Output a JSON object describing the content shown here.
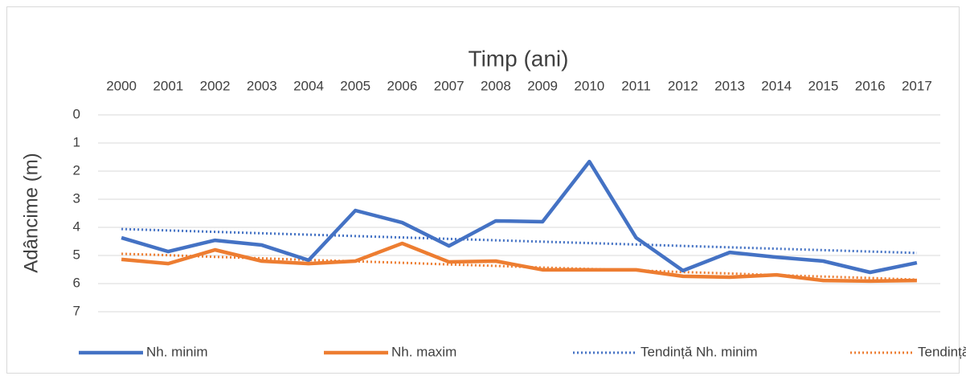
{
  "chart_data": {
    "type": "line",
    "title": "Timp (ani)",
    "y_label": "Adâncime (m)",
    "categories": [
      "2000",
      "2001",
      "2002",
      "2003",
      "2004",
      "2005",
      "2006",
      "2007",
      "2008",
      "2009",
      "2010",
      "2011",
      "2012",
      "2013",
      "2014",
      "2015",
      "2016",
      "2017"
    ],
    "series": [
      {
        "name": "Nh. minim",
        "color": "#4472c4",
        "style": "solid",
        "values": [
          4.37,
          4.86,
          4.46,
          4.63,
          5.17,
          3.4,
          3.83,
          4.66,
          3.77,
          3.8,
          1.66,
          4.37,
          5.54,
          4.89,
          5.06,
          5.2,
          5.6,
          5.26
        ]
      },
      {
        "name": "Nh. maxim",
        "color": "#ed7d31",
        "style": "solid",
        "values": [
          5.14,
          5.29,
          4.8,
          5.2,
          5.29,
          5.2,
          4.57,
          5.23,
          5.2,
          5.51,
          5.51,
          5.51,
          5.74,
          5.77,
          5.69,
          5.89,
          5.91,
          5.89
        ]
      },
      {
        "name": "Tendință Nh. minim",
        "color": "#4472c4",
        "style": "dotted",
        "values": [
          4.06,
          4.11,
          4.16,
          4.21,
          4.26,
          4.31,
          4.36,
          4.41,
          4.46,
          4.51,
          4.56,
          4.61,
          4.66,
          4.71,
          4.76,
          4.81,
          4.86,
          4.91
        ]
      },
      {
        "name": "Tendință Nh. maxim",
        "color": "#ed7d31",
        "style": "dotted",
        "values": [
          4.94,
          4.99,
          5.05,
          5.1,
          5.16,
          5.21,
          5.26,
          5.32,
          5.37,
          5.43,
          5.48,
          5.53,
          5.59,
          5.64,
          5.7,
          5.75,
          5.8,
          5.86
        ]
      }
    ],
    "ylim": [
      0,
      7
    ],
    "yticks": [
      0,
      1,
      2,
      3,
      4,
      5,
      6,
      7
    ],
    "y_inverted": true,
    "x_axis_position": "top",
    "grid": true,
    "legend": "bottom"
  }
}
